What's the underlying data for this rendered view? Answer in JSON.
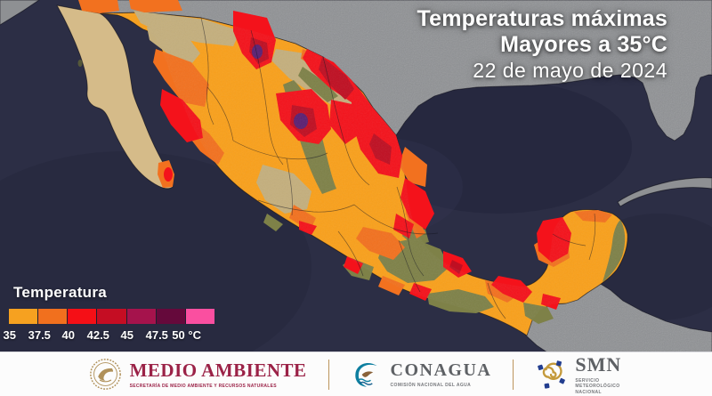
{
  "title": {
    "line1": "Temperaturas máximas",
    "line2": "Mayores a 35°C",
    "line3": "22 de mayo de 2024"
  },
  "legend": {
    "title": "Temperatura",
    "ticks": [
      "35",
      "37.5",
      "40",
      "42.5",
      "45",
      "47.5",
      "50 °C"
    ],
    "colors": [
      "#F6A120",
      "#F1701E",
      "#F50F16",
      "#C50D23",
      "#A5134C",
      "#65093B",
      "#FA4FA0"
    ]
  },
  "map": {
    "colors": {
      "ocean": "#2C2E45",
      "ocean_deep": "#23253A",
      "ocean_light": "#363857",
      "us_land": "#8E9093",
      "mexico_base": "#F9A01B",
      "baja_tan": "#D5BB89",
      "terrain_tan": "#C4AF7D",
      "terrain_olive": "#7E8148",
      "orange_hot": "#F2711F",
      "red": "#F4121B",
      "dark_red": "#BF0F22",
      "purple": "#5B2072"
    }
  },
  "footer": {
    "semarnat": {
      "name": "MEDIO AMBIENTE",
      "subtitle": "SECRETARÍA DE MEDIO AMBIENTE Y RECURSOS NATURALES"
    },
    "conagua": {
      "name": "CONAGUA",
      "subtitle": "COMISIÓN NACIONAL DEL AGUA"
    },
    "smn": {
      "name": "SMN",
      "subtitle": "SERVICIO METEOROLÓGICO NACIONAL"
    }
  }
}
